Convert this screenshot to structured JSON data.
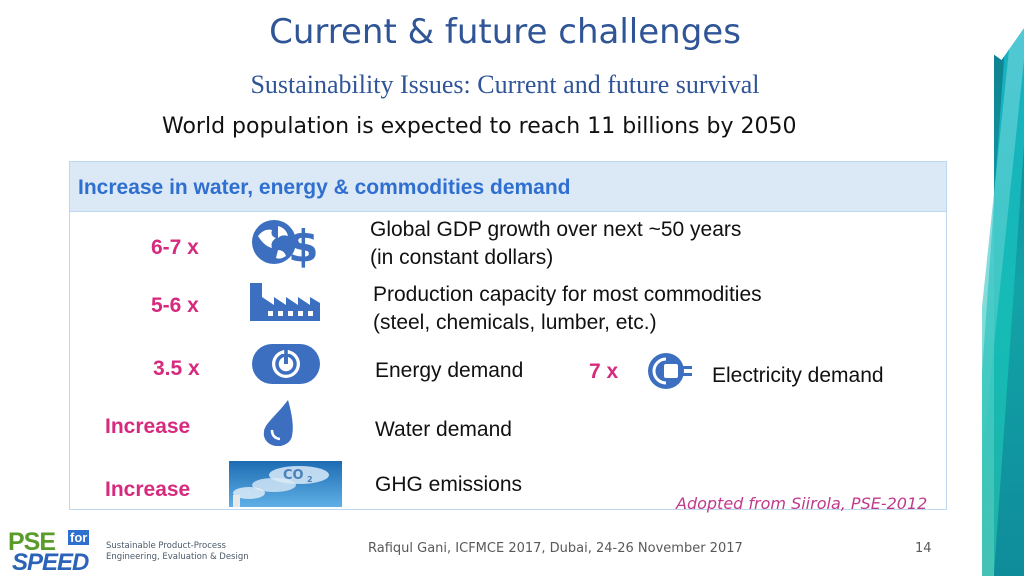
{
  "slide": {
    "title": "Current & future challenges",
    "subtitle": "Sustainability Issues: Current and future survival",
    "headline": "World population is expected to reach 11 billions by 2050"
  },
  "panel": {
    "header": "Increase in water, energy & commodities demand",
    "rows": [
      {
        "multiplier": "6-7 x",
        "icon": "globe-dollar-icon",
        "line1": "Global GDP growth over next ~50 years",
        "line2": "(in constant dollars)"
      },
      {
        "multiplier": "5-6 x",
        "icon": "factory-icon",
        "line1": "Production capacity for most commodities",
        "line2": "(steel, chemicals, lumber, etc.)"
      },
      {
        "multiplier": "3.5 x",
        "icon": "power-icon",
        "line1": "Energy demand",
        "line2": ""
      },
      {
        "multiplier": "Increase",
        "icon": "water-drop-icon",
        "line1": "Water demand",
        "line2": ""
      },
      {
        "multiplier": "Increase",
        "icon": "co2-smokestack-icon",
        "line1": "GHG emissions",
        "line2": ""
      }
    ],
    "electricity": {
      "multiplier": "7 x",
      "icon": "plug-icon",
      "label": "Electricity demand"
    }
  },
  "credit": "Adopted from Siirola, PSE-2012",
  "footer": {
    "text": "Rafiqul Gani, ICFMCE 2017, Dubai, 24-26 November 2017",
    "page": "14"
  },
  "logo": {
    "pse": "PSE",
    "for": "for",
    "speed": "SPEED",
    "tagline1": "Sustainable Product-Process",
    "tagline2": "Engineering, Evaluation & Design"
  },
  "colors": {
    "title": "#2f5597",
    "accent_magenta": "#d62a7e",
    "header_blue": "#2f6fcf",
    "icon_blue": "#3d6fc0"
  }
}
